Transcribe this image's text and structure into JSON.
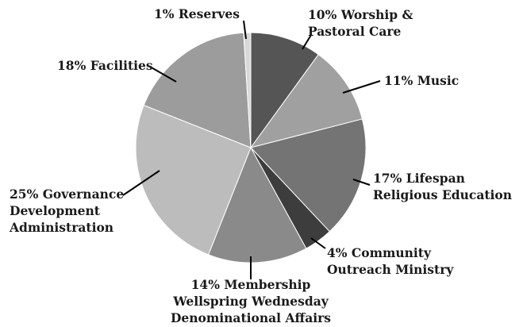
{
  "chart_data": {
    "type": "pie",
    "title": "",
    "slices": [
      {
        "value": 10,
        "label_lines": [
          "10% Worship &",
          "Pastoral Care"
        ],
        "color": "#555555"
      },
      {
        "value": 11,
        "label_lines": [
          "11% Music"
        ],
        "color": "#a0a0a0"
      },
      {
        "value": 17,
        "label_lines": [
          "17% Lifespan",
          "Religious Education"
        ],
        "color": "#747474"
      },
      {
        "value": 4,
        "label_lines": [
          "4% Community",
          "Outreach Ministry"
        ],
        "color": "#3d3d3d"
      },
      {
        "value": 14,
        "label_lines": [
          "14% Membership",
          "Wellspring Wednesday",
          "Denominational Affairs"
        ],
        "color": "#8a8a8a"
      },
      {
        "value": 25,
        "label_lines": [
          "25% Governance",
          "Development",
          "Administration"
        ],
        "color": "#bcbcbc"
      },
      {
        "value": 18,
        "label_lines": [
          "18% Facilities"
        ],
        "color": "#9c9c9c"
      },
      {
        "value": 1,
        "label_lines": [
          "1% Reserves"
        ],
        "color": "#d8d8d8"
      }
    ]
  }
}
